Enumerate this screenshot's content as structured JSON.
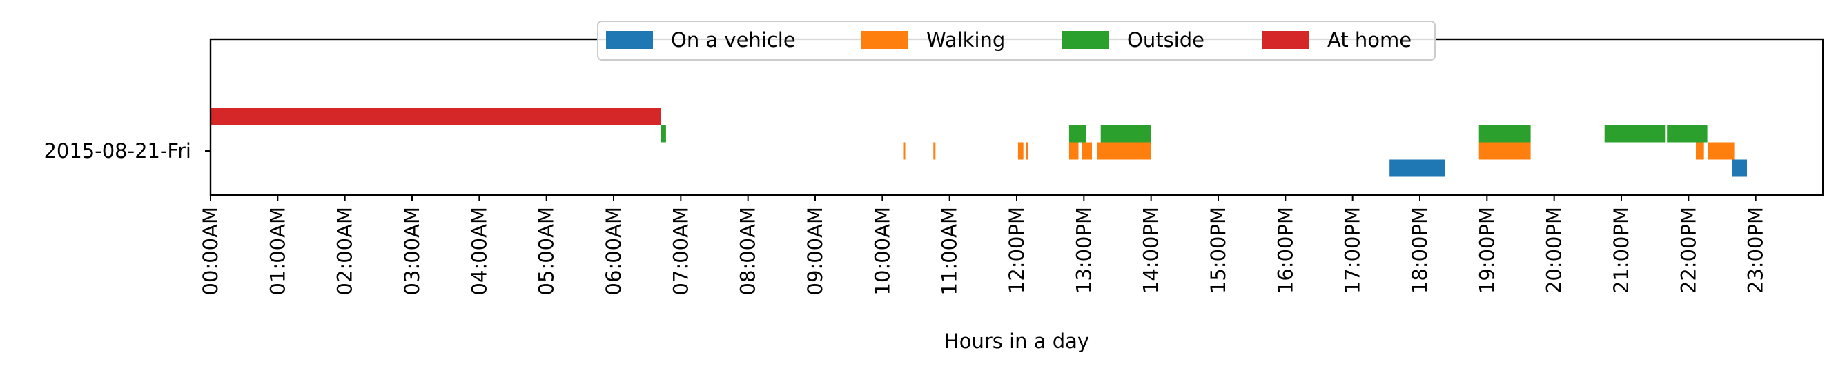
{
  "chart_data": {
    "type": "timeline",
    "xlabel": "Hours in a day",
    "row_label": "2015-08-21-Fri",
    "xlim": [
      0,
      24
    ],
    "x_unit": "hours",
    "tick_labels": [
      "00:00AM",
      "01:00AM",
      "02:00AM",
      "03:00AM",
      "04:00AM",
      "05:00AM",
      "06:00AM",
      "07:00AM",
      "08:00AM",
      "09:00AM",
      "10:00AM",
      "11:00AM",
      "12:00PM",
      "13:00PM",
      "14:00PM",
      "15:00PM",
      "16:00PM",
      "17:00PM",
      "18:00PM",
      "19:00PM",
      "20:00PM",
      "21:00PM",
      "22:00PM",
      "23:00PM"
    ],
    "legend_placement": "upper-center",
    "series": [
      {
        "name": "On a vehicle",
        "color": "#1f77b4",
        "lane": -0.5,
        "intervals": [
          [
            17.55,
            18.37
          ],
          [
            22.65,
            22.87
          ]
        ]
      },
      {
        "name": "Walking",
        "color": "#ff7f0e",
        "lane": 0,
        "intervals": [
          [
            10.31,
            10.34
          ],
          [
            10.76,
            10.79
          ],
          [
            12.02,
            12.1
          ],
          [
            12.14,
            12.17
          ],
          [
            12.78,
            12.92
          ],
          [
            12.97,
            13.12
          ],
          [
            13.2,
            14.0
          ],
          [
            18.88,
            19.65
          ],
          [
            22.11,
            22.23
          ],
          [
            22.29,
            22.68
          ]
        ]
      },
      {
        "name": "Outside",
        "color": "#2ca02c",
        "lane": 0.5,
        "intervals": [
          [
            6.7,
            6.78
          ],
          [
            12.78,
            13.03
          ],
          [
            13.25,
            14.0
          ],
          [
            18.88,
            19.65
          ],
          [
            20.75,
            21.65
          ],
          [
            21.68,
            22.28
          ]
        ]
      },
      {
        "name": "At home",
        "color": "#d62728",
        "lane": 1,
        "intervals": [
          [
            0.0,
            6.7
          ]
        ]
      }
    ]
  }
}
